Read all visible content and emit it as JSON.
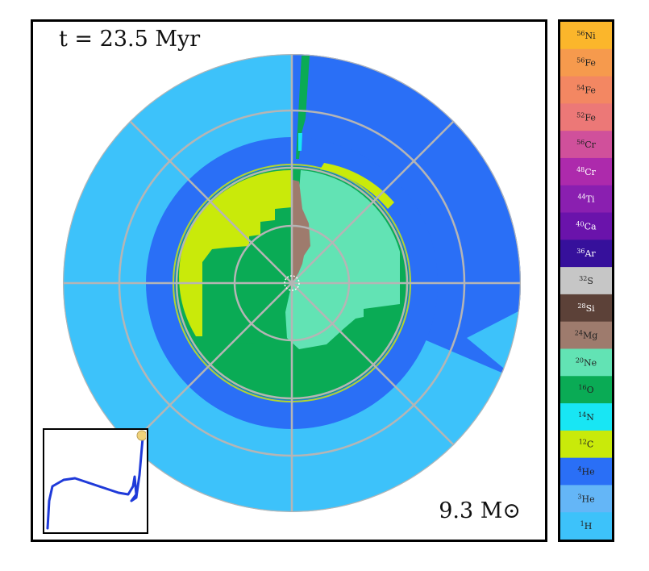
{
  "time_label": "t = 23.5 Myr",
  "mass_label": "9.3 M⊙",
  "colors": {
    "h1": "#3dc2fa",
    "he3": "#64b6f7",
    "he4": "#2a6ff6",
    "c12": "#c9ea0a",
    "n14": "#18e6f4",
    "o16": "#0aab55",
    "ne20": "#62e3b4",
    "mg24": "#9e7b6d",
    "grid": "#b5b5b5"
  },
  "legend": [
    {
      "label": "56Ni",
      "mass": "56",
      "el": "Ni",
      "color": "#fbb62b"
    },
    {
      "label": "56Fe",
      "mass": "56",
      "el": "Fe",
      "color": "#f69a4d"
    },
    {
      "label": "54Fe",
      "mass": "54",
      "el": "Fe",
      "color": "#f38762"
    },
    {
      "label": "52Fe",
      "mass": "52",
      "el": "Fe",
      "color": "#ec7877"
    },
    {
      "label": "56Cr",
      "mass": "56",
      "el": "Cr",
      "color": "#d0509b"
    },
    {
      "label": "48Cr",
      "mass": "48",
      "el": "Cr",
      "color": "#ad2aac"
    },
    {
      "label": "44Ti",
      "mass": "44",
      "el": "Ti",
      "color": "#8a1fb0"
    },
    {
      "label": "40Ca",
      "mass": "40",
      "el": "Ca",
      "color": "#6a13ab"
    },
    {
      "label": "36Ar",
      "mass": "36",
      "el": "Ar",
      "color": "#36109b"
    },
    {
      "label": "32S",
      "mass": "32",
      "el": "S",
      "color": "#c6c6c6"
    },
    {
      "label": "28Si",
      "mass": "28",
      "el": "Si",
      "color": "#5c4138"
    },
    {
      "label": "24Mg",
      "mass": "24",
      "el": "Mg",
      "color": "#9e7b6d"
    },
    {
      "label": "20Ne",
      "mass": "20",
      "el": "Ne",
      "color": "#62e3b4"
    },
    {
      "label": "16O",
      "mass": "16",
      "el": "O",
      "color": "#0aab55"
    },
    {
      "label": "14N",
      "mass": "14",
      "el": "N",
      "color": "#18e6f4"
    },
    {
      "label": "12C",
      "mass": "12",
      "el": "C",
      "color": "#c9ea0a"
    },
    {
      "label": "4He",
      "mass": "4",
      "el": "He",
      "color": "#2a6ff6"
    },
    {
      "label": "3He",
      "mass": "3",
      "el": "He",
      "color": "#64b6f7"
    },
    {
      "label": "1H",
      "mass": "1",
      "el": "H",
      "color": "#3dc2fa"
    }
  ],
  "chart_data": {
    "type": "polar composition diagram",
    "time": "23.5 Myr",
    "stellar_mass": "9.3 M⊙"
  }
}
